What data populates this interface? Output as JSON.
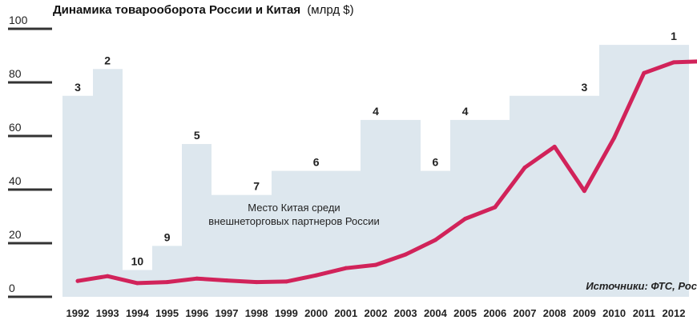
{
  "chart_data": {
    "type": "line",
    "title": "Динамика товарооборота России и Китая",
    "title_unit": "(млрд $)",
    "ylim": [
      0,
      100
    ],
    "yticks": [
      "100",
      "80",
      "60",
      "40",
      "20",
      "0"
    ],
    "categories": [
      "1992",
      "1993",
      "1994",
      "1995",
      "1996",
      "1997",
      "1998",
      "1999",
      "2000",
      "2001",
      "2002",
      "2003",
      "2004",
      "2005",
      "2006",
      "2007",
      "2008",
      "2009",
      "2010",
      "2011",
      "2012"
    ],
    "series": [
      {
        "values": [
          5.9,
          7.7,
          5.1,
          5.5,
          6.8,
          6.1,
          5.5,
          5.7,
          8.0,
          10.7,
          11.9,
          15.8,
          21.2,
          29.1,
          33.4,
          48.2,
          56.0,
          39.5,
          59.3,
          83.5,
          87.5
        ]
      }
    ],
    "rank_series": {
      "label": "Место Китая среди внешнеторговых партнеров России",
      "values": [
        3,
        2,
        10,
        9,
        5,
        7,
        7,
        6,
        6,
        6,
        4,
        4,
        6,
        4,
        4,
        3,
        3,
        3,
        1,
        1,
        1
      ],
      "background_heights": [
        75,
        85,
        10,
        19,
        57,
        38,
        38,
        47,
        47,
        47,
        66,
        66,
        47,
        66,
        66,
        75,
        75,
        75,
        94,
        94,
        94
      ],
      "rank_labels": [
        {
          "text": "3",
          "index": 0
        },
        {
          "text": "2",
          "index": 1
        },
        {
          "text": "10",
          "index": 2
        },
        {
          "text": "9",
          "index": 3
        },
        {
          "text": "5",
          "index": 4
        },
        {
          "text": "7",
          "index": 6
        },
        {
          "text": "6",
          "index": 8
        },
        {
          "text": "4",
          "index": 10
        },
        {
          "text": "6",
          "index": 12
        },
        {
          "text": "4",
          "index": 13
        },
        {
          "text": "3",
          "index": 17
        },
        {
          "text": "1",
          "index": 20
        }
      ]
    },
    "colors": {
      "line": "#d1235a",
      "background": "#dde7ee",
      "axis": "#333333"
    },
    "source": "Источники: ФТС, Рос"
  }
}
